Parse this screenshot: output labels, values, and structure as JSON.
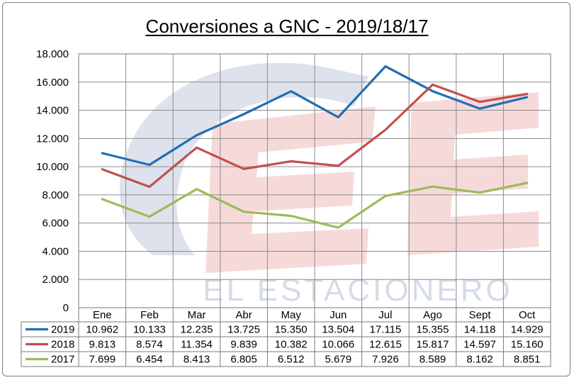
{
  "chart_data": {
    "type": "line",
    "title": "Conversiones a GNC - 2019/18/17",
    "xlabel": "",
    "ylabel": "",
    "categories": [
      "Ene",
      "Feb",
      "Mar",
      "Abr",
      "May",
      "Jun",
      "Jul",
      "Ago",
      "Sept",
      "Oct"
    ],
    "ylim": [
      0,
      18000
    ],
    "yticks": [
      0,
      2000,
      4000,
      6000,
      8000,
      10000,
      12000,
      14000,
      16000,
      18000
    ],
    "ytick_labels": [
      "0",
      "2.000",
      "4.000",
      "6.000",
      "8.000",
      "10.000",
      "12.000",
      "14.000",
      "16.000",
      "18.000"
    ],
    "grid": true,
    "legend": "data-table-below",
    "series": [
      {
        "name": "2019",
        "color": "#1f6fb5",
        "values": [
          10962,
          10133,
          12235,
          13725,
          15350,
          13504,
          17115,
          15355,
          14118,
          14929
        ],
        "labels": [
          "10.962",
          "10.133",
          "12.235",
          "13.725",
          "15.350",
          "13.504",
          "17.115",
          "15.355",
          "14.118",
          "14.929"
        ]
      },
      {
        "name": "2018",
        "color": "#c0504d",
        "values": [
          9813,
          8574,
          11354,
          9839,
          10382,
          10066,
          12615,
          15817,
          14597,
          15160
        ],
        "labels": [
          "9.813",
          "8.574",
          "11.354",
          "9.839",
          "10.382",
          "10.066",
          "12.615",
          "15.817",
          "14.597",
          "15.160"
        ]
      },
      {
        "name": "2017",
        "color": "#9bbb59",
        "values": [
          7699,
          6454,
          8413,
          6805,
          6512,
          5679,
          7926,
          8589,
          8162,
          8851
        ],
        "labels": [
          "7.699",
          "6.454",
          "8.413",
          "6.805",
          "6.512",
          "5.679",
          "7.926",
          "8.589",
          "8.162",
          "8.851"
        ]
      }
    ]
  },
  "watermark": {
    "text": "EL ESTACIONERO",
    "color_red": "#f5d3d3",
    "color_blue": "#d6dbe8"
  }
}
